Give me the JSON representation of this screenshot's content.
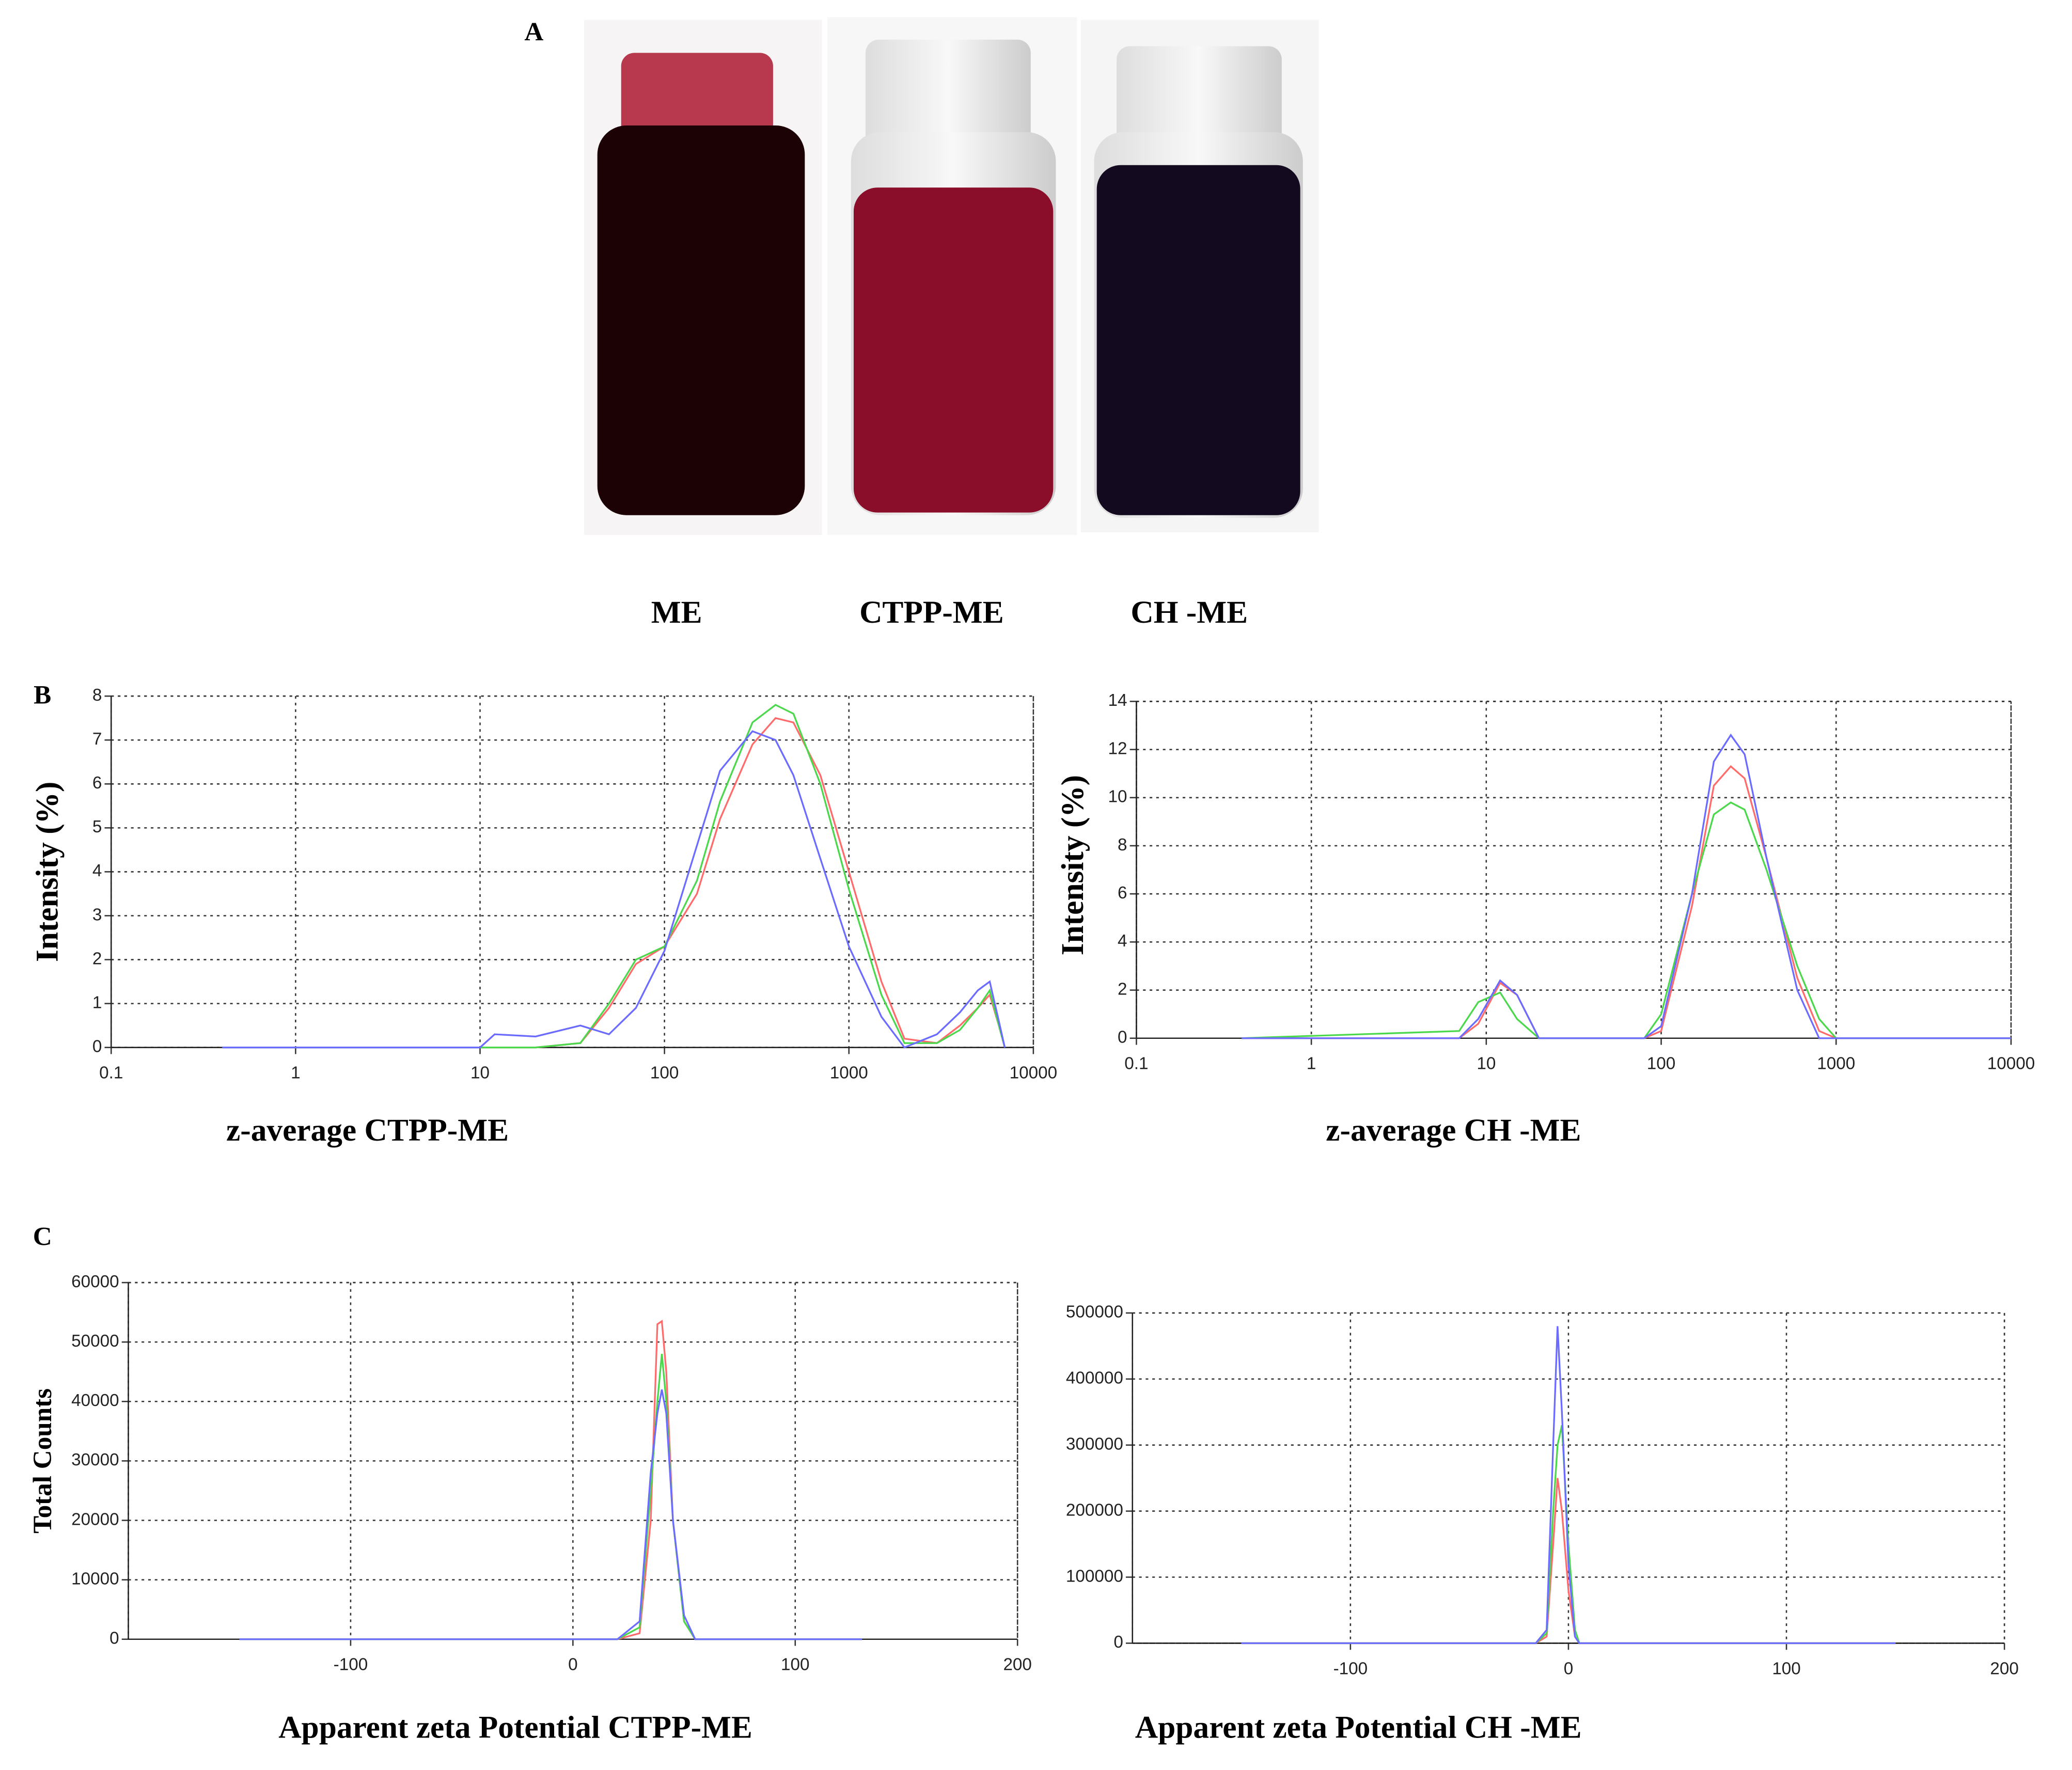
{
  "panel_labels": [
    "A",
    "B",
    "C"
  ],
  "vial_labels": [
    "ME",
    "CTPP-ME",
    "CH -ME"
  ],
  "chart_data": [
    {
      "type": "line",
      "xscale": "log",
      "grid": true,
      "xlabel": "z-average CTPP-ME",
      "ylabel": "Intensity (%)",
      "xlim": [
        0.1,
        10000
      ],
      "xticks": [
        0.1,
        1,
        10,
        100,
        1000,
        10000
      ],
      "ylim": [
        0,
        8
      ],
      "yticks": [
        0,
        1,
        2,
        3,
        4,
        5,
        6,
        7,
        8
      ],
      "x": [
        0.4,
        10,
        12,
        20,
        35,
        50,
        70,
        100,
        150,
        200,
        300,
        400,
        500,
        700,
        1000,
        1500,
        2000,
        3000,
        4000,
        5000,
        5800,
        6500,
        7000
      ],
      "series": [
        {
          "color": "#ff6b6b",
          "values": [
            0,
            0,
            0,
            0,
            0.1,
            0.9,
            1.9,
            2.3,
            3.5,
            5.2,
            6.9,
            7.5,
            7.4,
            6.2,
            4.0,
            1.5,
            0.2,
            0.1,
            0.5,
            0.9,
            1.2,
            0.5,
            0
          ]
        },
        {
          "color": "#4cd84c",
          "values": [
            0,
            0,
            0,
            0,
            0.1,
            1.0,
            2.0,
            2.3,
            3.8,
            5.6,
            7.4,
            7.8,
            7.6,
            6.0,
            3.6,
            1.2,
            0.1,
            0.1,
            0.4,
            0.9,
            1.3,
            0.5,
            0
          ]
        },
        {
          "color": "#6b6bff",
          "values": [
            0,
            0,
            0.3,
            0.25,
            0.5,
            0.3,
            0.9,
            2.2,
            4.6,
            6.3,
            7.2,
            7.0,
            6.2,
            4.3,
            2.3,
            0.7,
            0,
            0.3,
            0.8,
            1.3,
            1.5,
            0.6,
            0
          ]
        }
      ]
    },
    {
      "type": "line",
      "xscale": "log",
      "grid": true,
      "xlabel": "z-average CH -ME",
      "ylabel": "Intensity (%)",
      "xlim": [
        0.1,
        10000
      ],
      "xticks": [
        0.1,
        1,
        10,
        100,
        1000,
        10000
      ],
      "ylim": [
        0,
        14
      ],
      "yticks": [
        0,
        2,
        4,
        6,
        8,
        10,
        12,
        14
      ],
      "x": [
        0.4,
        7,
        9,
        12,
        15,
        20,
        80,
        100,
        150,
        200,
        250,
        300,
        400,
        600,
        800,
        1000,
        10000
      ],
      "series": [
        {
          "color": "#ff6b6b",
          "values": [
            0,
            0,
            0.6,
            2.3,
            1.8,
            0,
            0,
            0.3,
            5.5,
            10.5,
            11.3,
            10.8,
            7.5,
            2.5,
            0.3,
            0,
            0
          ]
        },
        {
          "color": "#4cd84c",
          "values": [
            0,
            0.3,
            1.5,
            1.9,
            0.8,
            0,
            0,
            1,
            6,
            9.3,
            9.8,
            9.5,
            7,
            3,
            0.8,
            0,
            0
          ]
        },
        {
          "color": "#6b6bff",
          "values": [
            0,
            0,
            0.8,
            2.4,
            1.8,
            0,
            0,
            0.5,
            6,
            11.5,
            12.6,
            11.8,
            7.5,
            2,
            0,
            0,
            0
          ]
        }
      ]
    },
    {
      "type": "line",
      "xscale": "linear",
      "grid": true,
      "xlabel": "Apparent zeta Potential CTPP-ME",
      "ylabel": "Total Counts",
      "xlim": [
        -200,
        200
      ],
      "xticks": [
        -100,
        0,
        100,
        200
      ],
      "ylim": [
        0,
        60000
      ],
      "yticks": [
        0,
        10000,
        20000,
        30000,
        40000,
        50000,
        60000
      ],
      "x": [
        -150,
        20,
        30,
        35,
        38,
        40,
        42,
        45,
        50,
        55,
        60,
        130
      ],
      "series": [
        {
          "color": "#ff6b6b",
          "values": [
            0,
            0,
            1000,
            20000,
            53000,
            53500,
            45000,
            20000,
            3000,
            0,
            0,
            0
          ]
        },
        {
          "color": "#4cd84c",
          "values": [
            0,
            0,
            2000,
            25000,
            40000,
            48000,
            40000,
            20000,
            3000,
            0,
            0,
            0
          ]
        },
        {
          "color": "#6b6bff",
          "values": [
            0,
            0,
            3000,
            28000,
            38000,
            42000,
            38000,
            20000,
            4000,
            0,
            0,
            0
          ]
        }
      ]
    },
    {
      "type": "line",
      "xscale": "linear",
      "grid": true,
      "xlabel": "Apparent zeta Potential CH -ME",
      "xlim": [
        -200,
        200
      ],
      "xticks": [
        -100,
        0,
        100,
        200
      ],
      "ylim": [
        0,
        500000
      ],
      "yticks": [
        0,
        100000,
        200000,
        300000,
        400000,
        500000
      ],
      "x": [
        -150,
        -15,
        -10,
        -7,
        -5,
        -3,
        0,
        3,
        5,
        10,
        150
      ],
      "series": [
        {
          "color": "#ff6b6b",
          "values": [
            0,
            0,
            10000,
            150000,
            250000,
            200000,
            80000,
            10000,
            0,
            0,
            0
          ]
        },
        {
          "color": "#4cd84c",
          "values": [
            0,
            0,
            15000,
            200000,
            300000,
            330000,
            150000,
            20000,
            0,
            0,
            0
          ]
        },
        {
          "color": "#6b6bff",
          "values": [
            0,
            0,
            20000,
            300000,
            480000,
            350000,
            120000,
            10000,
            0,
            0,
            0
          ]
        }
      ]
    }
  ]
}
